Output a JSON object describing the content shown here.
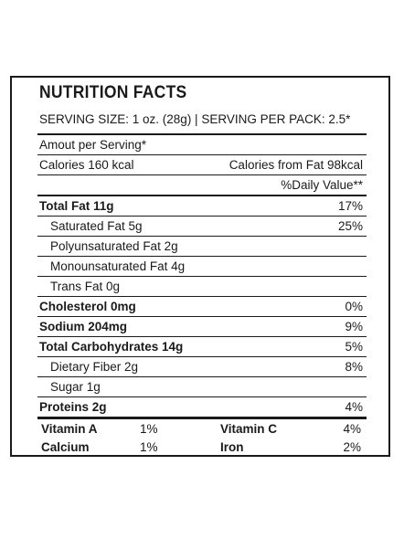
{
  "title": "NUTRITION FACTS",
  "serving": "SERVING SIZE: 1 oz. (28g) | SERVING PER PACK: 2.5*",
  "amount_per_serving": "Amout per Serving*",
  "calories": "Calories 160 kcal",
  "calories_from_fat": "Calories from Fat 98kcal",
  "daily_value_header": "%Daily Value**",
  "nutrients": [
    {
      "label": "Total Fat 11g",
      "value": "17%"
    },
    {
      "label": "Saturated Fat 5g",
      "value": "25%"
    },
    {
      "label": "Polyunsaturated Fat 2g",
      "value": ""
    },
    {
      "label": "Monounsaturated Fat 4g",
      "value": ""
    },
    {
      "label": "Trans Fat 0g",
      "value": ""
    },
    {
      "label": "Cholesterol 0mg",
      "value": "0%"
    },
    {
      "label": "Sodium 204mg",
      "value": "9%"
    },
    {
      "label": "Total Carbohydrates 14g",
      "value": "5%"
    },
    {
      "label": "Dietary Fiber 2g",
      "value": "8%"
    },
    {
      "label": "Sugar 1g",
      "value": ""
    },
    {
      "label": "Proteins 2g",
      "value": "4%"
    }
  ],
  "vitamins": [
    {
      "name": "Vitamin A",
      "value": "1%"
    },
    {
      "name": "Vitamin C",
      "value": "4%"
    },
    {
      "name": "Calcium",
      "value": "1%"
    },
    {
      "name": "Iron",
      "value": "2%"
    }
  ]
}
